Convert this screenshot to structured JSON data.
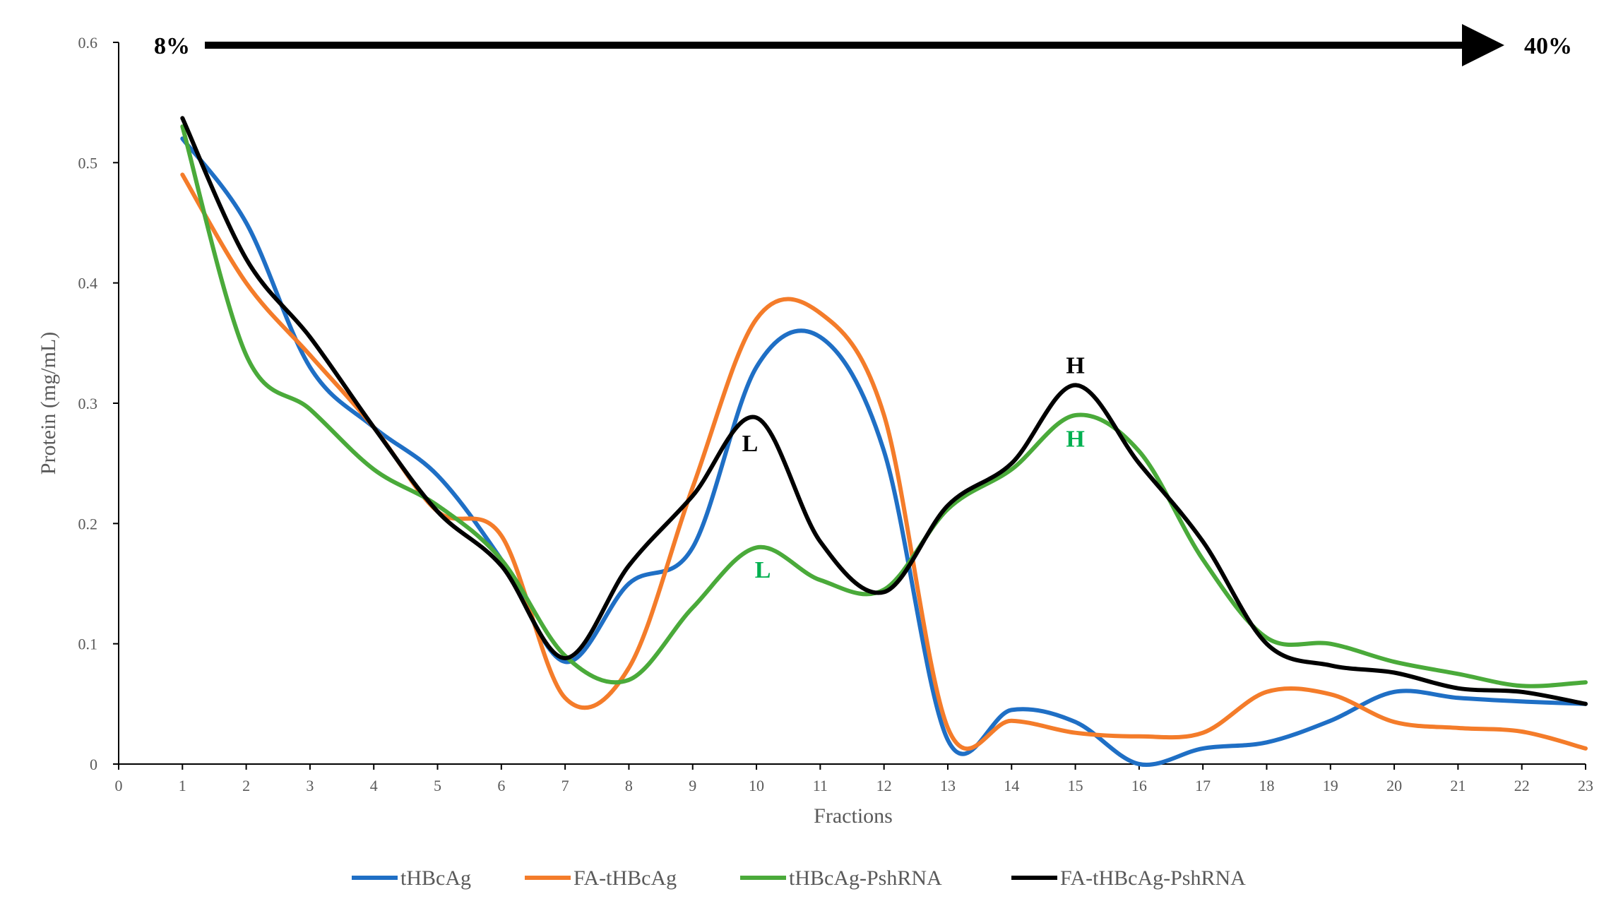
{
  "chart_data": {
    "type": "line",
    "title": "",
    "xlabel": "Fractions",
    "ylabel": "Protein (mg/mL)",
    "xlim": [
      0,
      23
    ],
    "ylim": [
      0,
      0.6
    ],
    "x_ticks": [
      "0",
      "1",
      "2",
      "3",
      "4",
      "5",
      "6",
      "7",
      "8",
      "9",
      "10",
      "11",
      "12",
      "13",
      "14",
      "15",
      "16",
      "17",
      "18",
      "19",
      "20",
      "21",
      "22",
      "23"
    ],
    "y_ticks": [
      "0",
      "0.1",
      "0.2",
      "0.3",
      "0.4",
      "0.5",
      "0.6"
    ],
    "x": [
      1,
      2,
      3,
      4,
      5,
      6,
      7,
      8,
      9,
      10,
      11,
      12,
      13,
      14,
      15,
      16,
      17,
      18,
      19,
      20,
      21,
      22,
      23
    ],
    "series": [
      {
        "name": "tHBcAg",
        "color": "#1f6fc5",
        "values": [
          0.52,
          0.45,
          0.33,
          0.28,
          0.24,
          0.17,
          0.085,
          0.15,
          0.18,
          0.33,
          0.355,
          0.26,
          0.02,
          0.045,
          0.035,
          0.0,
          0.013,
          0.018,
          0.036,
          0.06,
          0.055,
          0.052,
          0.05
        ]
      },
      {
        "name": "FA-tHBcAg",
        "color": "#f47c2a",
        "values": [
          0.49,
          0.4,
          0.34,
          0.28,
          0.21,
          0.19,
          0.055,
          0.08,
          0.23,
          0.37,
          0.375,
          0.29,
          0.03,
          0.036,
          0.026,
          0.023,
          0.026,
          0.06,
          0.058,
          0.035,
          0.03,
          0.027,
          0.013
        ]
      },
      {
        "name": "tHBcAg-PshRNA",
        "color": "#4aaa3a",
        "values": [
          0.53,
          0.34,
          0.295,
          0.245,
          0.215,
          0.17,
          0.09,
          0.07,
          0.13,
          0.18,
          0.153,
          0.145,
          0.212,
          0.245,
          0.29,
          0.26,
          0.17,
          0.105,
          0.1,
          0.085,
          0.075,
          0.065,
          0.068
        ]
      },
      {
        "name": "FA-tHBcAg-PshRNA",
        "color": "#000000",
        "values": [
          0.537,
          0.42,
          0.355,
          0.28,
          0.21,
          0.165,
          0.088,
          0.165,
          0.223,
          0.288,
          0.185,
          0.143,
          0.215,
          0.25,
          0.315,
          0.25,
          0.185,
          0.1,
          0.082,
          0.076,
          0.063,
          0.06,
          0.05
        ]
      }
    ],
    "annotations": {
      "gradient_start": "8%",
      "gradient_end": "40%",
      "peaks": [
        {
          "text": "L",
          "x": 9.9,
          "y": 0.26,
          "color": "#000000"
        },
        {
          "text": "L",
          "x": 10.1,
          "y": 0.155,
          "color": "#00b050"
        },
        {
          "text": "H",
          "x": 15.0,
          "y": 0.325,
          "color": "#000000"
        },
        {
          "text": "H",
          "x": 15.0,
          "y": 0.264,
          "color": "#00b050"
        }
      ]
    },
    "grid": false,
    "legend_position": "bottom-center"
  }
}
